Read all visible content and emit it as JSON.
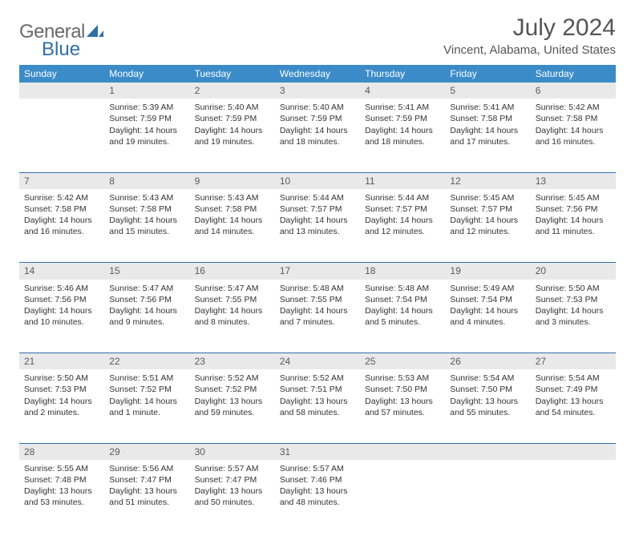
{
  "logo": {
    "text_gray": "General",
    "text_blue": "Blue"
  },
  "colors": {
    "header_bg": "#3b8bc9",
    "row_accent": "#2f6fa7",
    "daynum_bg": "#e9e9e9",
    "text": "#333333",
    "muted": "#555555",
    "logo_gray": "#6a6a6a",
    "logo_blue": "#2f6fa7"
  },
  "title": "July 2024",
  "location": "Vincent, Alabama, United States",
  "weekdays": [
    "Sunday",
    "Monday",
    "Tuesday",
    "Wednesday",
    "Thursday",
    "Friday",
    "Saturday"
  ],
  "weeks": [
    {
      "nums": [
        "",
        "1",
        "2",
        "3",
        "4",
        "5",
        "6"
      ],
      "cells": [
        null,
        {
          "sunrise": "Sunrise: 5:39 AM",
          "sunset": "Sunset: 7:59 PM",
          "daylight": "Daylight: 14 hours and 19 minutes."
        },
        {
          "sunrise": "Sunrise: 5:40 AM",
          "sunset": "Sunset: 7:59 PM",
          "daylight": "Daylight: 14 hours and 19 minutes."
        },
        {
          "sunrise": "Sunrise: 5:40 AM",
          "sunset": "Sunset: 7:59 PM",
          "daylight": "Daylight: 14 hours and 18 minutes."
        },
        {
          "sunrise": "Sunrise: 5:41 AM",
          "sunset": "Sunset: 7:59 PM",
          "daylight": "Daylight: 14 hours and 18 minutes."
        },
        {
          "sunrise": "Sunrise: 5:41 AM",
          "sunset": "Sunset: 7:58 PM",
          "daylight": "Daylight: 14 hours and 17 minutes."
        },
        {
          "sunrise": "Sunrise: 5:42 AM",
          "sunset": "Sunset: 7:58 PM",
          "daylight": "Daylight: 14 hours and 16 minutes."
        }
      ]
    },
    {
      "nums": [
        "7",
        "8",
        "9",
        "10",
        "11",
        "12",
        "13"
      ],
      "cells": [
        {
          "sunrise": "Sunrise: 5:42 AM",
          "sunset": "Sunset: 7:58 PM",
          "daylight": "Daylight: 14 hours and 16 minutes."
        },
        {
          "sunrise": "Sunrise: 5:43 AM",
          "sunset": "Sunset: 7:58 PM",
          "daylight": "Daylight: 14 hours and 15 minutes."
        },
        {
          "sunrise": "Sunrise: 5:43 AM",
          "sunset": "Sunset: 7:58 PM",
          "daylight": "Daylight: 14 hours and 14 minutes."
        },
        {
          "sunrise": "Sunrise: 5:44 AM",
          "sunset": "Sunset: 7:57 PM",
          "daylight": "Daylight: 14 hours and 13 minutes."
        },
        {
          "sunrise": "Sunrise: 5:44 AM",
          "sunset": "Sunset: 7:57 PM",
          "daylight": "Daylight: 14 hours and 12 minutes."
        },
        {
          "sunrise": "Sunrise: 5:45 AM",
          "sunset": "Sunset: 7:57 PM",
          "daylight": "Daylight: 14 hours and 12 minutes."
        },
        {
          "sunrise": "Sunrise: 5:45 AM",
          "sunset": "Sunset: 7:56 PM",
          "daylight": "Daylight: 14 hours and 11 minutes."
        }
      ]
    },
    {
      "nums": [
        "14",
        "15",
        "16",
        "17",
        "18",
        "19",
        "20"
      ],
      "cells": [
        {
          "sunrise": "Sunrise: 5:46 AM",
          "sunset": "Sunset: 7:56 PM",
          "daylight": "Daylight: 14 hours and 10 minutes."
        },
        {
          "sunrise": "Sunrise: 5:47 AM",
          "sunset": "Sunset: 7:56 PM",
          "daylight": "Daylight: 14 hours and 9 minutes."
        },
        {
          "sunrise": "Sunrise: 5:47 AM",
          "sunset": "Sunset: 7:55 PM",
          "daylight": "Daylight: 14 hours and 8 minutes."
        },
        {
          "sunrise": "Sunrise: 5:48 AM",
          "sunset": "Sunset: 7:55 PM",
          "daylight": "Daylight: 14 hours and 7 minutes."
        },
        {
          "sunrise": "Sunrise: 5:48 AM",
          "sunset": "Sunset: 7:54 PM",
          "daylight": "Daylight: 14 hours and 5 minutes."
        },
        {
          "sunrise": "Sunrise: 5:49 AM",
          "sunset": "Sunset: 7:54 PM",
          "daylight": "Daylight: 14 hours and 4 minutes."
        },
        {
          "sunrise": "Sunrise: 5:50 AM",
          "sunset": "Sunset: 7:53 PM",
          "daylight": "Daylight: 14 hours and 3 minutes."
        }
      ]
    },
    {
      "nums": [
        "21",
        "22",
        "23",
        "24",
        "25",
        "26",
        "27"
      ],
      "cells": [
        {
          "sunrise": "Sunrise: 5:50 AM",
          "sunset": "Sunset: 7:53 PM",
          "daylight": "Daylight: 14 hours and 2 minutes."
        },
        {
          "sunrise": "Sunrise: 5:51 AM",
          "sunset": "Sunset: 7:52 PM",
          "daylight": "Daylight: 14 hours and 1 minute."
        },
        {
          "sunrise": "Sunrise: 5:52 AM",
          "sunset": "Sunset: 7:52 PM",
          "daylight": "Daylight: 13 hours and 59 minutes."
        },
        {
          "sunrise": "Sunrise: 5:52 AM",
          "sunset": "Sunset: 7:51 PM",
          "daylight": "Daylight: 13 hours and 58 minutes."
        },
        {
          "sunrise": "Sunrise: 5:53 AM",
          "sunset": "Sunset: 7:50 PM",
          "daylight": "Daylight: 13 hours and 57 minutes."
        },
        {
          "sunrise": "Sunrise: 5:54 AM",
          "sunset": "Sunset: 7:50 PM",
          "daylight": "Daylight: 13 hours and 55 minutes."
        },
        {
          "sunrise": "Sunrise: 5:54 AM",
          "sunset": "Sunset: 7:49 PM",
          "daylight": "Daylight: 13 hours and 54 minutes."
        }
      ]
    },
    {
      "nums": [
        "28",
        "29",
        "30",
        "31",
        "",
        "",
        ""
      ],
      "cells": [
        {
          "sunrise": "Sunrise: 5:55 AM",
          "sunset": "Sunset: 7:48 PM",
          "daylight": "Daylight: 13 hours and 53 minutes."
        },
        {
          "sunrise": "Sunrise: 5:56 AM",
          "sunset": "Sunset: 7:47 PM",
          "daylight": "Daylight: 13 hours and 51 minutes."
        },
        {
          "sunrise": "Sunrise: 5:57 AM",
          "sunset": "Sunset: 7:47 PM",
          "daylight": "Daylight: 13 hours and 50 minutes."
        },
        {
          "sunrise": "Sunrise: 5:57 AM",
          "sunset": "Sunset: 7:46 PM",
          "daylight": "Daylight: 13 hours and 48 minutes."
        },
        null,
        null,
        null
      ]
    }
  ]
}
